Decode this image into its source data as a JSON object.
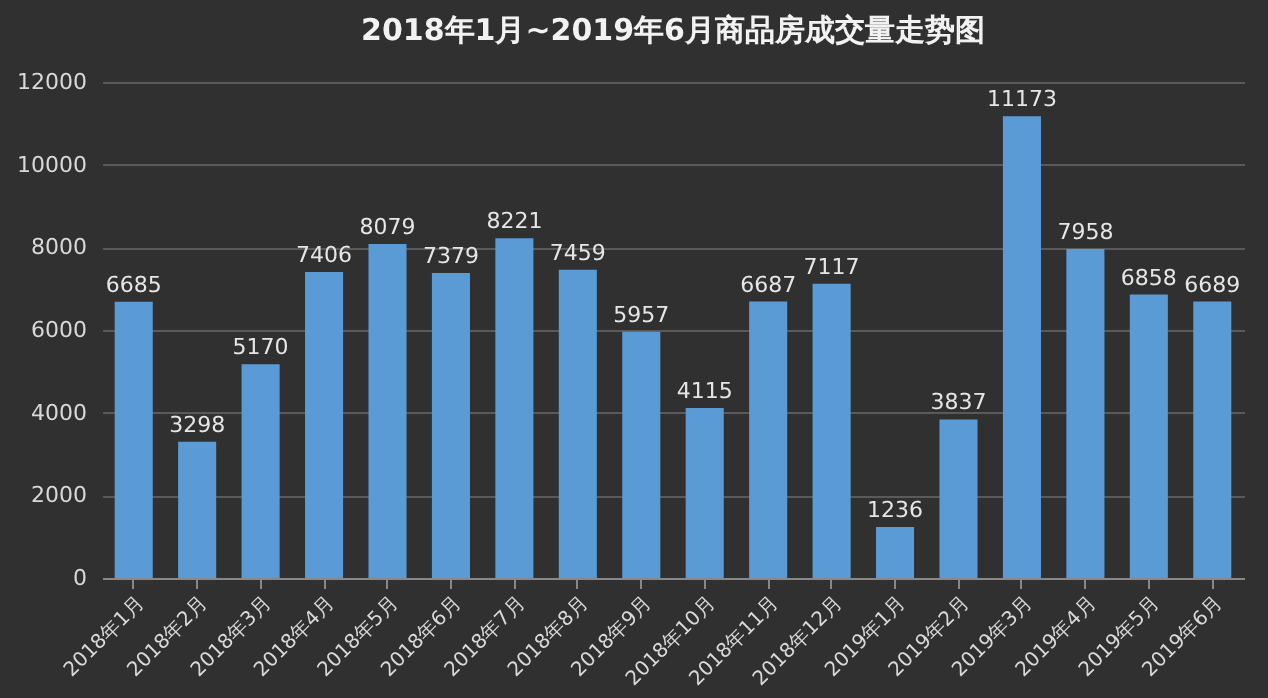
{
  "chart_data": {
    "type": "bar",
    "title": "2018年1月~2019年6月商品房成交量走势图",
    "categories": [
      "2018年1月",
      "2018年2月",
      "2018年3月",
      "2018年4月",
      "2018年5月",
      "2018年6月",
      "2018年7月",
      "2018年8月",
      "2018年9月",
      "2018年10月",
      "2018年11月",
      "2018年12月",
      "2019年1月",
      "2019年2月",
      "2019年3月",
      "2019年4月",
      "2019年5月",
      "2019年6月"
    ],
    "values": [
      6685,
      3298,
      5170,
      7406,
      8079,
      7379,
      8221,
      7459,
      5957,
      4115,
      6687,
      7117,
      1236,
      3837,
      11173,
      7958,
      6858,
      6689
    ],
    "color": "#5b9bd5",
    "ylim": [
      0,
      12000
    ],
    "yticks": [
      0,
      2000,
      4000,
      6000,
      8000,
      10000,
      12000
    ],
    "grid": "y",
    "data_labels": true
  }
}
